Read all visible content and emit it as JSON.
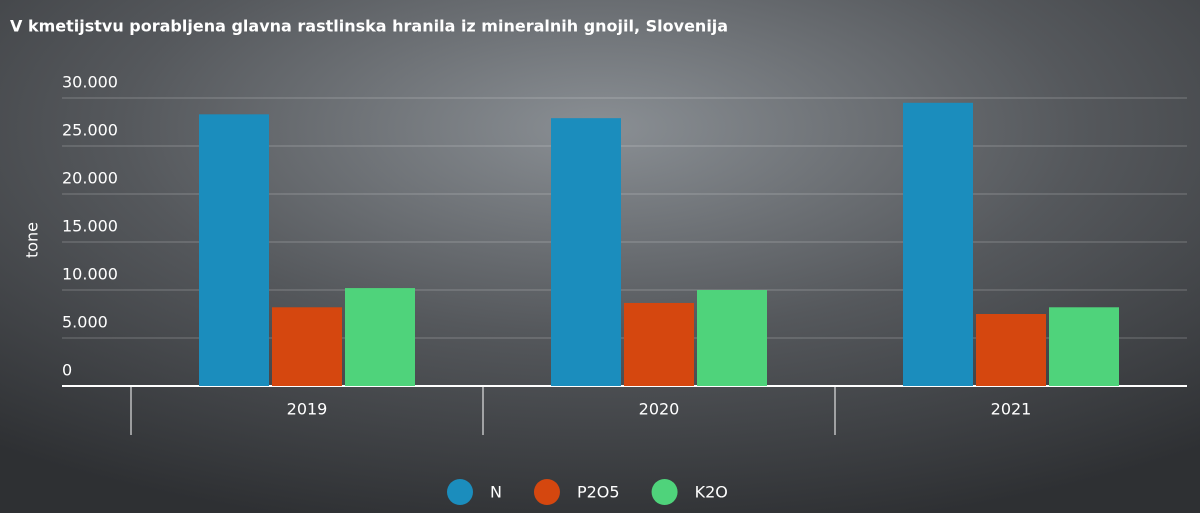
{
  "chart_data": {
    "type": "bar",
    "title": "V kmetijstvu porabljena glavna rastlinska hranila iz mineralnih gnojil, Slovenija",
    "y_label": "tone",
    "categories": [
      "2019",
      "2020",
      "2021"
    ],
    "series": [
      {
        "name": "N",
        "color": "#1b8dbd",
        "values": [
          28300,
          27900,
          29500
        ]
      },
      {
        "name": "P2O5",
        "color": "#d5470f",
        "values": [
          8200,
          8650,
          7500
        ]
      },
      {
        "name": "K2O",
        "color": "#4fd37b",
        "values": [
          10200,
          10000,
          8200
        ]
      }
    ],
    "ylim": [
      0,
      30000
    ],
    "yticks": [
      {
        "value": 0,
        "label": "0"
      },
      {
        "value": 5000,
        "label": "5.000"
      },
      {
        "value": 10000,
        "label": "10.000"
      },
      {
        "value": 15000,
        "label": "15.000"
      },
      {
        "value": 20000,
        "label": "20.000"
      },
      {
        "value": 25000,
        "label": "25.000"
      },
      {
        "value": 30000,
        "label": "30.000"
      }
    ],
    "grid": true
  }
}
